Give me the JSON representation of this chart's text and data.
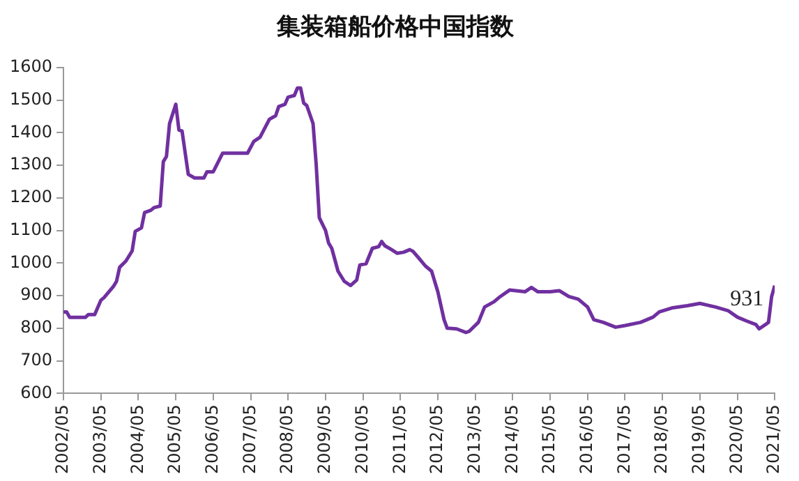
{
  "chart_data": {
    "type": "line",
    "title": "集装箱船价格中国指数",
    "x": [
      "2002-05",
      "2002-06",
      "2002-07",
      "2002-12",
      "2003-01",
      "2003-03",
      "2003-05",
      "2003-06",
      "2003-09",
      "2003-10",
      "2003-11",
      "2004-01",
      "2004-03",
      "2004-04",
      "2004-06",
      "2004-07",
      "2004-09",
      "2004-10",
      "2004-12",
      "2005-01",
      "2005-02",
      "2005-03",
      "2005-05",
      "2005-06",
      "2005-07",
      "2005-09",
      "2005-11",
      "2006-02",
      "2006-03",
      "2006-05",
      "2006-08",
      "2007-04",
      "2007-06",
      "2007-08",
      "2007-11",
      "2008-01",
      "2008-02",
      "2008-04",
      "2008-05",
      "2008-07",
      "2008-08",
      "2008-09",
      "2008-10",
      "2008-11",
      "2009-01",
      "2009-02",
      "2009-03",
      "2009-05",
      "2009-06",
      "2009-07",
      "2009-09",
      "2009-11",
      "2010-01",
      "2010-03",
      "2010-04",
      "2010-06",
      "2010-08",
      "2010-10",
      "2010-11",
      "2010-12",
      "2011-02",
      "2011-04",
      "2011-06",
      "2011-08",
      "2011-09",
      "2011-11",
      "2012-01",
      "2012-03",
      "2012-05",
      "2012-07",
      "2012-08",
      "2012-11",
      "2013-02",
      "2013-03",
      "2013-06",
      "2013-08",
      "2013-11",
      "2014-01",
      "2014-04",
      "2014-09",
      "2014-11",
      "2015-01",
      "2015-05",
      "2015-08",
      "2015-11",
      "2016-02",
      "2016-05",
      "2016-07",
      "2016-10",
      "2017-02",
      "2017-05",
      "2017-10",
      "2018-02",
      "2018-04",
      "2018-08",
      "2019-01",
      "2019-05",
      "2019-10",
      "2020-02",
      "2020-05",
      "2020-08",
      "2020-11",
      "2020-12",
      "2021-02",
      "2021-03",
      "2021-04",
      "2021-05"
    ],
    "values": [
      850,
      850,
      833,
      833,
      842,
      842,
      886,
      894,
      928,
      944,
      987,
      1006,
      1037,
      1097,
      1108,
      1155,
      1162,
      1170,
      1175,
      1311,
      1327,
      1428,
      1487,
      1408,
      1405,
      1272,
      1261,
      1261,
      1280,
      1280,
      1337,
      1337,
      1373,
      1386,
      1441,
      1452,
      1480,
      1487,
      1509,
      1514,
      1537,
      1537,
      1491,
      1483,
      1428,
      1303,
      1139,
      1100,
      1061,
      1045,
      975,
      944,
      931,
      948,
      994,
      998,
      1045,
      1050,
      1066,
      1053,
      1042,
      1030,
      1033,
      1041,
      1036,
      1014,
      991,
      975,
      912,
      826,
      800,
      798,
      787,
      790,
      818,
      865,
      881,
      897,
      917,
      912,
      925,
      912,
      912,
      915,
      897,
      889,
      865,
      826,
      818,
      803,
      808,
      818,
      834,
      850,
      862,
      869,
      876,
      865,
      854,
      834,
      822,
      811,
      798,
      811,
      818,
      897,
      931
    ],
    "value_labels": [
      null,
      null,
      null,
      null,
      null,
      null,
      null,
      null,
      null,
      null,
      null,
      null,
      null,
      null,
      null,
      null,
      null,
      null,
      null,
      null,
      null,
      null,
      null,
      null,
      null,
      null,
      null,
      null,
      null,
      null,
      null,
      null,
      null,
      null,
      null,
      null,
      null,
      null,
      null,
      null,
      null,
      null,
      null,
      null,
      null,
      null,
      null,
      null,
      null,
      null,
      null,
      null,
      null,
      null,
      null,
      null,
      null,
      null,
      null,
      null,
      null,
      null,
      null,
      null,
      null,
      null,
      null,
      null,
      null,
      null,
      null,
      null,
      null,
      null,
      null,
      null,
      null,
      null,
      null,
      null,
      null,
      null,
      null,
      null,
      null,
      null,
      null,
      null,
      null,
      null,
      null,
      null,
      null,
      null,
      null,
      null,
      null,
      null,
      null,
      null,
      null,
      null,
      null,
      null,
      null,
      null,
      "931"
    ],
    "color": "#7030a0",
    "xlim": [
      "2002-05",
      "2021-05"
    ],
    "xticks": [
      {
        "value": "2002-05",
        "label": "2002/05"
      },
      {
        "value": "2003-05",
        "label": "2003/05"
      },
      {
        "value": "2004-05",
        "label": "2004/05"
      },
      {
        "value": "2005-05",
        "label": "2005/05"
      },
      {
        "value": "2006-05",
        "label": "2006/05"
      },
      {
        "value": "2007-05",
        "label": "2007/05"
      },
      {
        "value": "2008-05",
        "label": "2008/05"
      },
      {
        "value": "2009-05",
        "label": "2009/05"
      },
      {
        "value": "2010-05",
        "label": "2010/05"
      },
      {
        "value": "2011-05",
        "label": "2011/05"
      },
      {
        "value": "2012-05",
        "label": "2012/05"
      },
      {
        "value": "2013-05",
        "label": "2013/05"
      },
      {
        "value": "2014-05",
        "label": "2014/05"
      },
      {
        "value": "2015-05",
        "label": "2015/05"
      },
      {
        "value": "2016-05",
        "label": "2016/05"
      },
      {
        "value": "2017-05",
        "label": "2017/05"
      },
      {
        "value": "2018-05",
        "label": "2018/05"
      },
      {
        "value": "2019-05",
        "label": "2019/05"
      },
      {
        "value": "2020-05",
        "label": "2020/05"
      },
      {
        "value": "2021-05",
        "label": "2021/05"
      }
    ],
    "ylim": [
      600,
      1600
    ],
    "yticks": [
      600,
      700,
      800,
      900,
      1000,
      1100,
      1200,
      1300,
      1400,
      1500,
      1600
    ],
    "grid": false,
    "legend": false,
    "marker": "none",
    "line_style": "solid"
  }
}
